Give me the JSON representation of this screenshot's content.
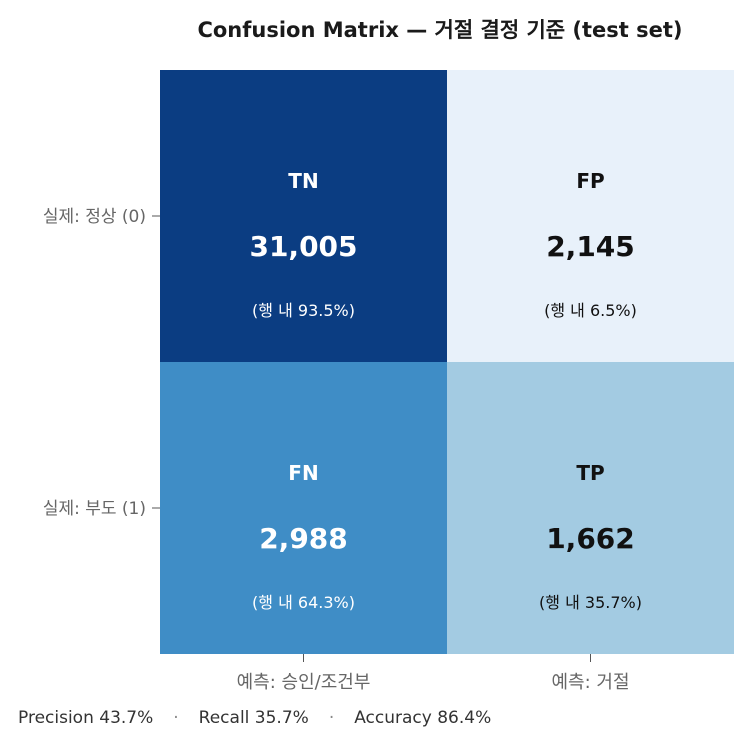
{
  "chart_data": {
    "type": "heatmap",
    "title": "Confusion Matrix — 거절 결정 기준 (test set)",
    "rows": [
      "실제: 정상 (0)",
      "실제: 부도 (1)"
    ],
    "columns": [
      "예측: 승인/조건부",
      "예측: 거절"
    ],
    "cells": [
      [
        {
          "label": "TN",
          "value_text": "31,005",
          "value": 31005,
          "row_pct_text": "(행 내 93.5%)",
          "row_pct": 93.5
        },
        {
          "label": "FP",
          "value_text": "2,145",
          "value": 2145,
          "row_pct_text": "(행 내 6.5%)",
          "row_pct": 6.5
        }
      ],
      [
        {
          "label": "FN",
          "value_text": "2,988",
          "value": 2988,
          "row_pct_text": "(행 내 64.3%)",
          "row_pct": 64.3
        },
        {
          "label": "TP",
          "value_text": "1,662",
          "value": 1662,
          "row_pct_text": "(행 내 35.7%)",
          "row_pct": 35.7
        }
      ]
    ],
    "colormap": "Blues",
    "colors": {
      "0_0": "#0b3d82",
      "0_1": "#e8f1fa",
      "1_0": "#3f8dc6",
      "1_1": "#a3cbe2"
    },
    "text_colors": {
      "0_0": "#ffffff",
      "0_1": "#111111",
      "1_0": "#ffffff",
      "1_1": "#111111"
    }
  },
  "footer": {
    "precision": "Precision 43.7%",
    "separator": "·",
    "recall": "Recall 35.7%",
    "accuracy": "Accuracy 86.4%"
  }
}
